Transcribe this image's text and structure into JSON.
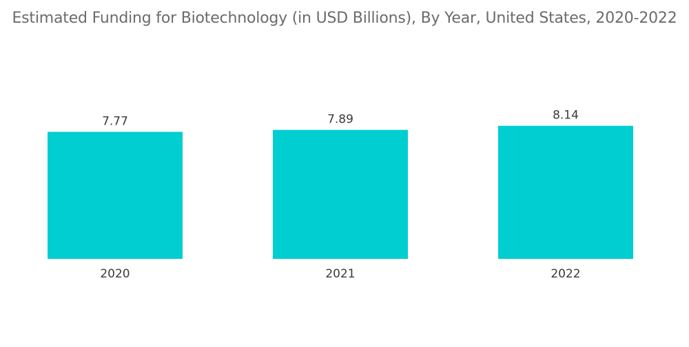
{
  "chart_data": {
    "type": "bar",
    "title": "Estimated Funding for Biotechnology (in USD Billions), By Year, United States, 2020-2022",
    "xlabel": "",
    "ylabel": "",
    "categories": [
      "2020",
      "2021",
      "2022"
    ],
    "values": [
      7.77,
      7.89,
      8.14
    ],
    "data_labels": [
      "7.77",
      "7.89",
      "8.14"
    ],
    "bar_color": "#00CED1",
    "grid": false,
    "legend": "none"
  }
}
